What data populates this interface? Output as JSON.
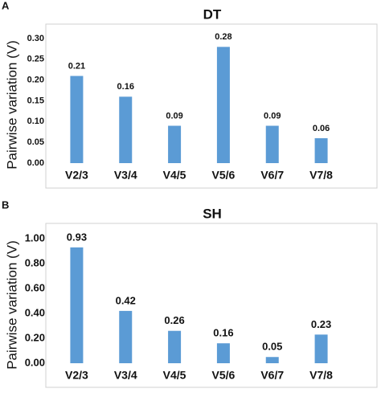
{
  "chart_data": [
    {
      "type": "bar",
      "panel": "A",
      "title": "DT",
      "y_label": "Pairwise variation (V)",
      "categories": [
        "V2/3",
        "V3/4",
        "V4/5",
        "V5/6",
        "V6/7",
        "V7/8"
      ],
      "values": [
        0.21,
        0.16,
        0.09,
        0.28,
        0.09,
        0.06
      ],
      "color": "#5b9bd5",
      "ylim": [
        0,
        0.3
      ],
      "yticks": [
        {
          "value": 0,
          "label": "0.00"
        },
        {
          "value": 0.05,
          "label": "0.05"
        },
        {
          "value": 0.1,
          "label": "0.10"
        },
        {
          "value": 0.15,
          "label": "0.15"
        },
        {
          "value": 0.2,
          "label": "0.20"
        },
        {
          "value": 0.25,
          "label": "0.25"
        },
        {
          "value": 0.3,
          "label": "0.30"
        }
      ],
      "grid": false
    },
    {
      "type": "bar",
      "panel": "B",
      "title": "SH",
      "y_label": "Pairwise variation (V)",
      "categories": [
        "V2/3",
        "V3/4",
        "V4/5",
        "V5/6",
        "V6/7",
        "V7/8"
      ],
      "values": [
        0.93,
        0.42,
        0.26,
        0.16,
        0.05,
        0.23
      ],
      "color": "#5b9bd5",
      "ylim": [
        0,
        1
      ],
      "yticks": [
        {
          "value": 0,
          "label": "0.00"
        },
        {
          "value": 0.2,
          "label": "0.20"
        },
        {
          "value": 0.4,
          "label": "0.40"
        },
        {
          "value": 0.6,
          "label": "0.60"
        },
        {
          "value": 0.8,
          "label": "0.80"
        },
        {
          "value": 1,
          "label": "1.00"
        }
      ],
      "grid": false
    }
  ]
}
